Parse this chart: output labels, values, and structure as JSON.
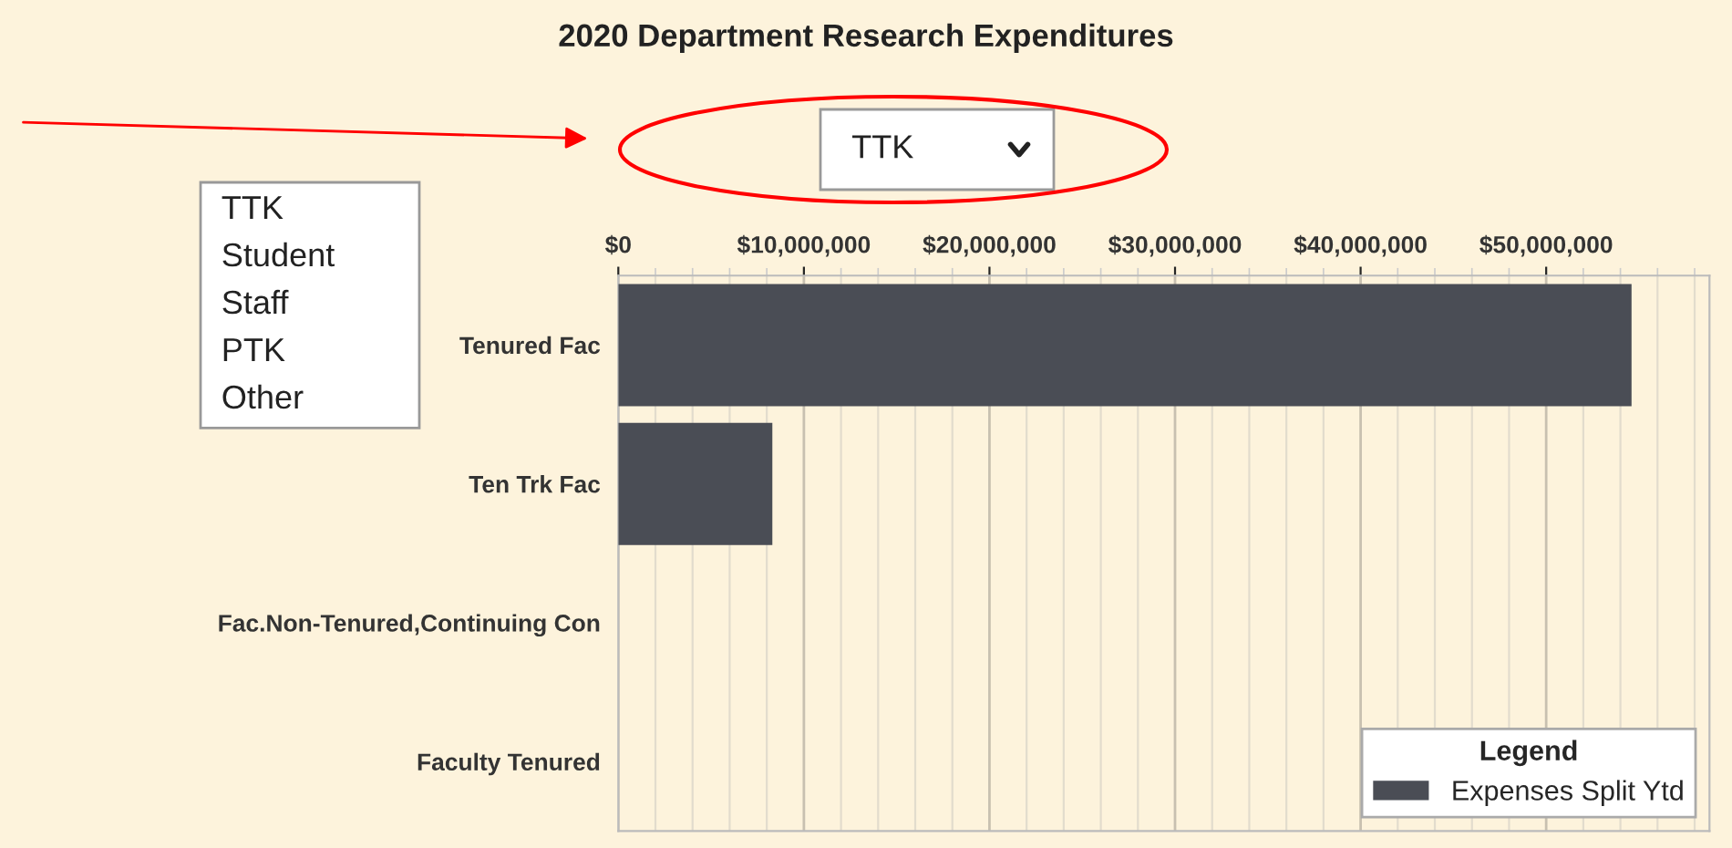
{
  "chart_data": {
    "type": "bar",
    "orientation": "horizontal",
    "title": "2020 Department Research Expenditures",
    "categories": [
      "Tenured Fac",
      "Ten Trk Fac",
      "Fac.Non-Tenured,Continuing Con",
      "Faculty Tenured"
    ],
    "series": [
      {
        "name": "Expenses Split Ytd",
        "color": "#4a4d55",
        "values": [
          54600000,
          8300000,
          0,
          0
        ]
      }
    ],
    "xlim": [
      0,
      58800000
    ],
    "xticks": [
      {
        "value": 0,
        "label": "$0"
      },
      {
        "value": 10000000,
        "label": "$10,000,000"
      },
      {
        "value": 20000000,
        "label": "$20,000,000"
      },
      {
        "value": 30000000,
        "label": "$30,000,000"
      },
      {
        "value": 40000000,
        "label": "$40,000,000"
      },
      {
        "value": 50000000,
        "label": "$50,000,000"
      }
    ],
    "grid": "x",
    "legend": "bottom right",
    "legend_title": "Legend",
    "annotations": [
      "TTK",
      "TTK",
      "Student",
      "Staff",
      "PTK",
      "Other"
    ]
  }
}
